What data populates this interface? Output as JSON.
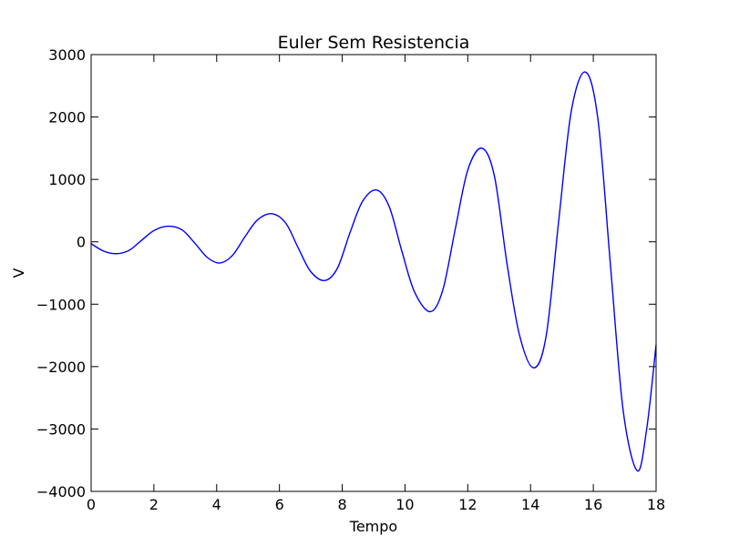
{
  "chart_data": {
    "type": "line",
    "title": "Euler Sem Resistencia",
    "xlabel": "Tempo",
    "ylabel": "V",
    "xlim": [
      0,
      18
    ],
    "ylim": [
      -4000,
      3000
    ],
    "xticks": [
      0,
      2,
      4,
      6,
      8,
      10,
      12,
      14,
      16,
      18
    ],
    "yticks": [
      -4000,
      -3000,
      -2000,
      -1000,
      0,
      1000,
      2000,
      3000
    ],
    "xtick_labels": [
      "0",
      "2",
      "4",
      "6",
      "8",
      "10",
      "12",
      "14",
      "16",
      "18"
    ],
    "ytick_labels": [
      "−4000",
      "−3000",
      "−2000",
      "−1000",
      "0",
      "1000",
      "2000",
      "3000"
    ],
    "grid": false,
    "series_color": "#0000ff",
    "series": [
      {
        "x": [
          0,
          0.4,
          0.8,
          1.2,
          1.6,
          2.0,
          2.45,
          2.9,
          3.3,
          3.7,
          4.1,
          4.5,
          4.9,
          5.3,
          5.75,
          6.2,
          6.6,
          7.0,
          7.45,
          7.85,
          8.25,
          8.65,
          9.1,
          9.5,
          9.9,
          10.3,
          10.8,
          11.2,
          11.6,
          12.0,
          12.45,
          12.85,
          13.25,
          13.65,
          14.1,
          14.5,
          14.9,
          15.3,
          15.75,
          16.15,
          16.55,
          16.95,
          17.4,
          17.7,
          18.0
        ],
        "y": [
          -30,
          -150,
          -190,
          -140,
          20,
          180,
          250,
          190,
          -20,
          -250,
          -340,
          -220,
          80,
          350,
          450,
          300,
          -100,
          -480,
          -620,
          -420,
          150,
          650,
          830,
          560,
          -150,
          -800,
          -1120,
          -780,
          200,
          1150,
          1500,
          1050,
          -350,
          -1500,
          -2020,
          -1500,
          350,
          2100,
          2720,
          1950,
          -400,
          -2700,
          -3670,
          -3000,
          -1650
        ]
      }
    ]
  }
}
